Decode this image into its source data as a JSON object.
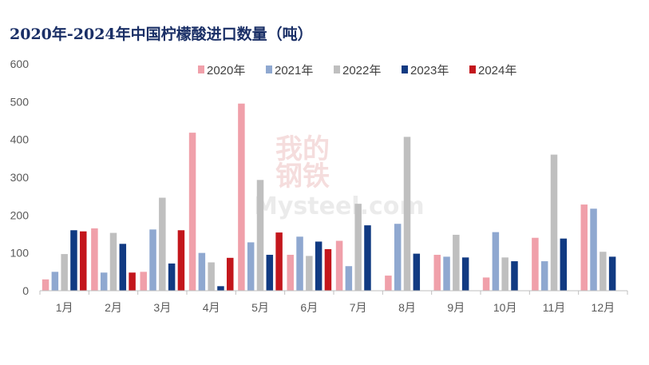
{
  "chart_data": {
    "type": "bar",
    "title": "2020年-2024年中国柠檬酸进口数量（吨）",
    "categories": [
      "1月",
      "2月",
      "3月",
      "4月",
      "5月",
      "6月",
      "7月",
      "8月",
      "9月",
      "10月",
      "11月",
      "12月"
    ],
    "series": [
      {
        "name": "2020年",
        "color": "#f0a0aa",
        "values": [
          30,
          165,
          50,
          418,
          495,
          95,
          132,
          40,
          95,
          35,
          140,
          228
        ]
      },
      {
        "name": "2021年",
        "color": "#8fa8d0",
        "values": [
          50,
          48,
          162,
          100,
          128,
          143,
          65,
          177,
          90,
          155,
          78,
          217
        ]
      },
      {
        "name": "2022年",
        "color": "#bfbfbf",
        "values": [
          97,
          153,
          246,
          75,
          293,
          92,
          230,
          407,
          148,
          88,
          360,
          103
        ]
      },
      {
        "name": "2023年",
        "color": "#113a82",
        "values": [
          160,
          124,
          72,
          12,
          95,
          130,
          173,
          98,
          88,
          78,
          138,
          90
        ]
      },
      {
        "name": "2024年",
        "color": "#c3161c",
        "values": [
          157,
          48,
          160,
          87,
          154,
          110,
          null,
          null,
          null,
          null,
          null,
          null
        ]
      }
    ],
    "ylim": [
      0,
      600
    ],
    "yticks": [
      0,
      100,
      200,
      300,
      400,
      500,
      600
    ],
    "legend_position": "top",
    "grid": false
  },
  "watermark": {
    "line1": "我的",
    "line2": "钢铁",
    "line3": "Mysteel.com"
  }
}
